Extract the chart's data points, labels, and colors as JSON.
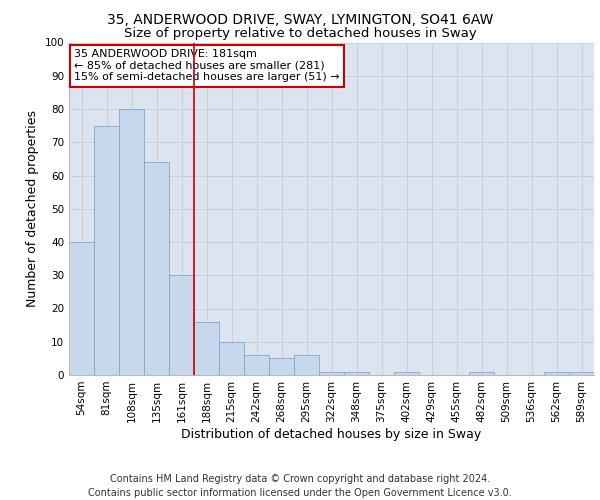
{
  "title_line1": "35, ANDERWOOD DRIVE, SWAY, LYMINGTON, SO41 6AW",
  "title_line2": "Size of property relative to detached houses in Sway",
  "xlabel": "Distribution of detached houses by size in Sway",
  "ylabel": "Number of detached properties",
  "categories": [
    "54sqm",
    "81sqm",
    "108sqm",
    "135sqm",
    "161sqm",
    "188sqm",
    "215sqm",
    "242sqm",
    "268sqm",
    "295sqm",
    "322sqm",
    "348sqm",
    "375sqm",
    "402sqm",
    "429sqm",
    "455sqm",
    "482sqm",
    "509sqm",
    "536sqm",
    "562sqm",
    "589sqm"
  ],
  "values": [
    40,
    75,
    80,
    64,
    30,
    16,
    10,
    6,
    5,
    6,
    1,
    1,
    0,
    1,
    0,
    0,
    1,
    0,
    0,
    1,
    1
  ],
  "bar_color": "#c8d8ec",
  "bar_edge_color": "#7aaad4",
  "grid_color": "#c8d0dc",
  "background_color": "#dce4f0",
  "annotation_box_text": "35 ANDERWOOD DRIVE: 181sqm\n← 85% of detached houses are smaller (281)\n15% of semi-detached houses are larger (51) →",
  "annotation_box_color": "#ffffff",
  "annotation_box_edge_color": "#cc0000",
  "vline_x": 4.5,
  "vline_color": "#cc0000",
  "ylim": [
    0,
    100
  ],
  "yticks": [
    0,
    10,
    20,
    30,
    40,
    50,
    60,
    70,
    80,
    90,
    100
  ],
  "footer_text": "Contains HM Land Registry data © Crown copyright and database right 2024.\nContains public sector information licensed under the Open Government Licence v3.0.",
  "title_fontsize": 10,
  "subtitle_fontsize": 9.5,
  "axis_label_fontsize": 9,
  "tick_fontsize": 7.5,
  "annotation_fontsize": 8,
  "footer_fontsize": 7
}
